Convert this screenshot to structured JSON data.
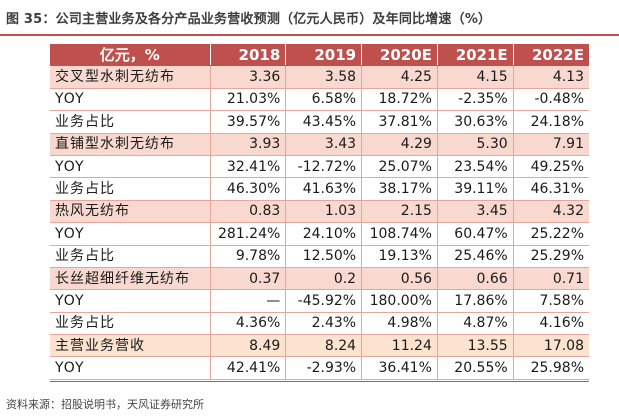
{
  "title": "图 35：公司主营业务及各分产品业务营收预测（亿元人民币）及年同比增速（%）",
  "table": {
    "header": [
      "亿元，%",
      "2018",
      "2019",
      "2020E",
      "2021E",
      "2022E"
    ],
    "rows": [
      {
        "cells": [
          "交叉型水刺无纺布",
          "3.36",
          "3.58",
          "4.25",
          "4.15",
          "4.13"
        ],
        "highlight": true
      },
      {
        "cells": [
          "YOY",
          "21.03%",
          "6.58%",
          "18.72%",
          "-2.35%",
          "-0.48%"
        ],
        "highlight": false
      },
      {
        "cells": [
          "业务占比",
          "39.57%",
          "43.45%",
          "37.81%",
          "30.63%",
          "24.18%"
        ],
        "highlight": false
      },
      {
        "cells": [
          "直铺型水刺无纺布",
          "3.93",
          "3.43",
          "4.29",
          "5.30",
          "7.91"
        ],
        "highlight": true
      },
      {
        "cells": [
          "YOY",
          "32.41%",
          "-12.72%",
          "25.07%",
          "23.54%",
          "49.25%"
        ],
        "highlight": false
      },
      {
        "cells": [
          "业务占比",
          "46.30%",
          "41.63%",
          "38.17%",
          "39.11%",
          "46.31%"
        ],
        "highlight": false
      },
      {
        "cells": [
          "热风无纺布",
          "0.83",
          "1.03",
          "2.15",
          "3.45",
          "4.32"
        ],
        "highlight": true
      },
      {
        "cells": [
          "YOY",
          "281.24%",
          "24.10%",
          "108.74%",
          "60.47%",
          "25.22%"
        ],
        "highlight": false
      },
      {
        "cells": [
          "业务占比",
          "9.78%",
          "12.50%",
          "19.13%",
          "25.46%",
          "25.29%"
        ],
        "highlight": false
      },
      {
        "cells": [
          "长丝超细纤维无纺布",
          "0.37",
          "0.2",
          "0.56",
          "0.66",
          "0.71"
        ],
        "highlight": true
      },
      {
        "cells": [
          "YOY",
          "—",
          "-45.92%",
          "180.00%",
          "17.86%",
          "7.58%"
        ],
        "highlight": false
      },
      {
        "cells": [
          "业务占比",
          "4.36%",
          "2.43%",
          "4.98%",
          "4.87%",
          "4.16%"
        ],
        "highlight": false
      },
      {
        "cells": [
          "主营业务营收",
          "8.49",
          "8.24",
          "11.24",
          "13.55",
          "17.08"
        ],
        "highlight": true,
        "total": true
      },
      {
        "cells": [
          "YOY",
          "42.41%",
          "-2.93%",
          "36.41%",
          "20.55%",
          "25.98%"
        ],
        "highlight": false
      }
    ]
  },
  "source": "资料来源：招股说明书，天风证券研究所",
  "colors": {
    "header_bg": "#c0504d",
    "highlight_row_bg": "#f9d9cf",
    "total_row_bg": "#fbe3d0",
    "row_rule": "#e6a69c"
  }
}
